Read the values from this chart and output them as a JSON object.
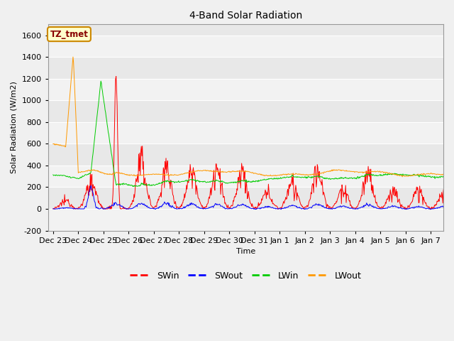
{
  "title": "4-Band Solar Radiation",
  "xlabel": "Time",
  "ylabel": "Solar Radiation (W/m2)",
  "ylim": [
    -200,
    1700
  ],
  "yticks": [
    -200,
    0,
    200,
    400,
    600,
    800,
    1000,
    1200,
    1400,
    1600
  ],
  "x_tick_labels": [
    "Dec 23",
    "Dec 24",
    "Dec 25",
    "Dec 26",
    "Dec 27",
    "Dec 28",
    "Dec 29",
    "Dec 30",
    "Dec 31",
    "Jan 1",
    "Jan 2",
    "Jan 3",
    "Jan 4",
    "Jan 5",
    "Jan 6",
    "Jan 7"
  ],
  "series_colors": {
    "SWin": "#ff0000",
    "SWout": "#0000ff",
    "LWin": "#00cc00",
    "LWout": "#ff9900"
  },
  "annotation_text": "TZ_tmet",
  "annotation_box_facecolor": "#ffffcc",
  "annotation_box_edgecolor": "#cc8800",
  "fig_facecolor": "#f0f0f0",
  "plot_facecolor": "#e8e8e8",
  "grid_color": "#ffffff",
  "title_fontsize": 10,
  "label_fontsize": 8,
  "tick_fontsize": 8
}
